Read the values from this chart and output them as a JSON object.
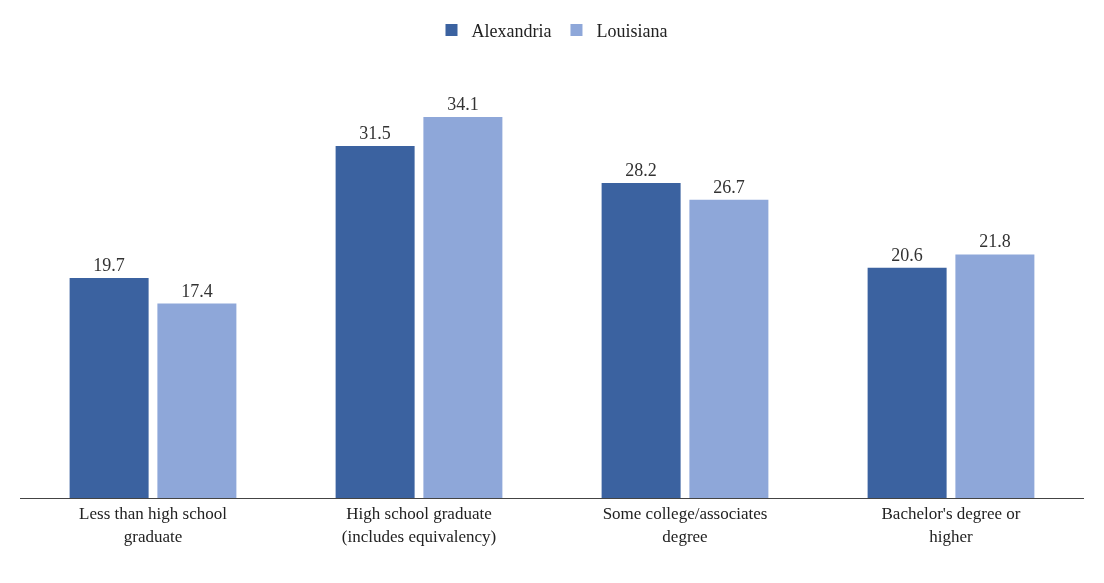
{
  "chart_data": {
    "type": "bar",
    "categories": [
      "Less than high school\ngraduate",
      "High school graduate\n(includes equivalency)",
      "Some college/associates\ndegree",
      "Bachelor's degree or\nhigher"
    ],
    "series": [
      {
        "name": "Alexandria",
        "color": "#3b62a0",
        "values": [
          19.7,
          31.5,
          28.2,
          20.6
        ]
      },
      {
        "name": "Louisiana",
        "color": "#8ea7d9",
        "values": [
          17.4,
          34.1,
          26.7,
          21.8
        ]
      }
    ],
    "data_labels": true,
    "legend": "top",
    "grid": false
  }
}
